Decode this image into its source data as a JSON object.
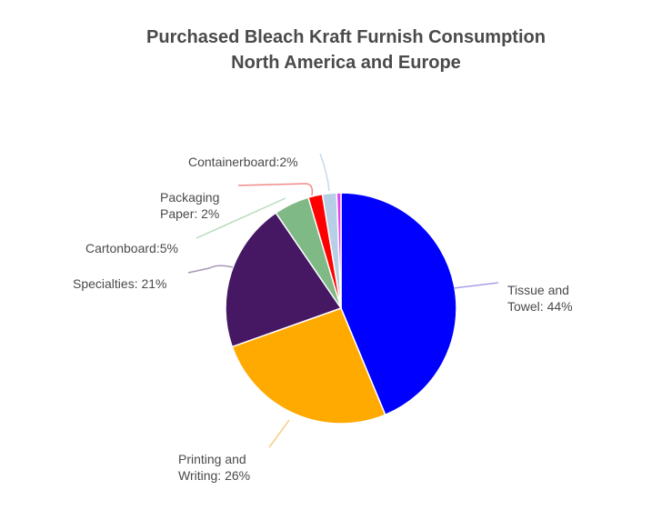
{
  "chart_data": {
    "type": "pie",
    "title_lines": [
      "Purchased Bleach Kraft Furnish Consumption",
      "North America and Europe"
    ],
    "slices": [
      {
        "label_lines": [
          "Tissue and",
          "Towel: 44%"
        ],
        "value": 44,
        "color": "#0000ff"
      },
      {
        "label_lines": [
          "Printing and",
          "Writing: 26%"
        ],
        "value": 26,
        "color": "#ffaa00"
      },
      {
        "label_lines": [
          "Specialties: 21%"
        ],
        "value": 21,
        "color": "#461864"
      },
      {
        "label_lines": [
          "Cartonboard:5%"
        ],
        "value": 5,
        "color": "#7fb985"
      },
      {
        "label_lines": [
          "Packaging",
          "Paper: 2%"
        ],
        "value": 2,
        "color": "#ff0000"
      },
      {
        "label_lines": [
          "Containerboard:2%"
        ],
        "value": 2,
        "color": "#b7cfe6"
      },
      {
        "label_lines": [],
        "value": 0.6,
        "color": "#e040f0"
      }
    ],
    "legend": "none"
  }
}
